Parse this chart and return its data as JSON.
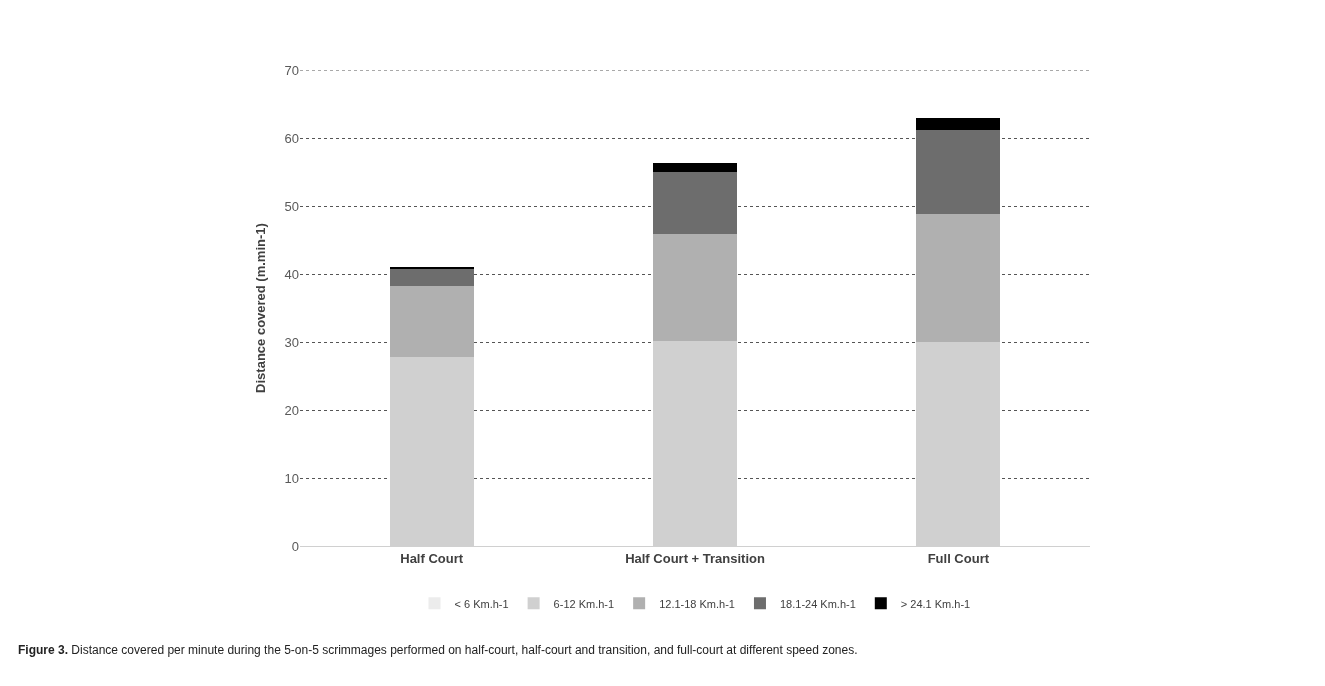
{
  "chart_data": {
    "type": "bar",
    "stacked": true,
    "ylabel": "Distance covered (m.min-1)",
    "categories": [
      "Half Court",
      "Half Court + Transition",
      "Full Court"
    ],
    "series": [
      {
        "name": "< 6 Km.h-1",
        "color": "#ececec",
        "values": [
          null,
          null,
          null
        ]
      },
      {
        "name": "6-12 Km.h-1",
        "color": "#d0d0d0",
        "values": [
          27.8,
          30.1,
          30.0
        ]
      },
      {
        "name": "12.1-18 Km.h-1",
        "color": "#b0b0b0",
        "values": [
          10.5,
          15.8,
          18.8
        ]
      },
      {
        "name": "18.1-24 Km.h-1",
        "color": "#6d6d6d",
        "values": [
          2.5,
          9.1,
          12.4
        ]
      },
      {
        "name": "> 24.1 Km.h-1",
        "color": "#000000",
        "values": [
          0.2,
          1.3,
          1.8
        ]
      }
    ],
    "ylim": [
      0,
      70
    ],
    "yticks": [
      0,
      10,
      20,
      30,
      40,
      50,
      60,
      70
    ],
    "grid": "y",
    "legend": "bottom",
    "annotations": [
      "**Figure 3.** Distance covered per minute during the 5-on-5 scrimmages performed on half-court, half-court and transition, and full-court at different speed zones."
    ]
  }
}
